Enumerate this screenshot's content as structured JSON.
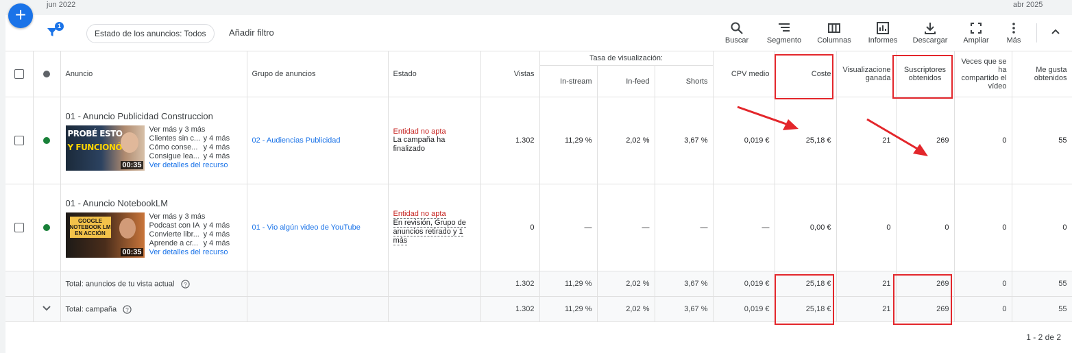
{
  "timeline": {
    "start": "jun 2022",
    "end": "abr 2025"
  },
  "toolbar": {
    "filter_badge": "1",
    "status_chip": "Estado de los anuncios: Todos",
    "add_filter": "Añadir filtro",
    "tools": [
      {
        "label": "Buscar",
        "icon": "search-icon"
      },
      {
        "label": "Segmento",
        "icon": "segment-icon"
      },
      {
        "label": "Columnas",
        "icon": "columns-icon"
      },
      {
        "label": "Informes",
        "icon": "reports-icon"
      },
      {
        "label": "Descargar",
        "icon": "download-icon"
      },
      {
        "label": "Ampliar",
        "icon": "expand-icon"
      },
      {
        "label": "Más",
        "icon": "more-vert-icon"
      }
    ]
  },
  "columns": {
    "ad": "Anuncio",
    "group": "Grupo de anuncios",
    "status": "Estado",
    "views": "Vistas",
    "view_rate": "Tasa de visualización:",
    "instream": "In-stream",
    "infeed": "In-feed",
    "shorts": "Shorts",
    "cpv": "CPV medio",
    "cost": "Coste",
    "earned_views": "Visualizacione ganada",
    "subscribers": "Suscriptores obtenidos",
    "shares": "Veces que se ha compartido el vídeo",
    "likes": "Me gusta obtenidos"
  },
  "rows": [
    {
      "title": "01 - Anuncio Publicidad Construccion",
      "thumb_text": [
        "PROBÉ ESTO",
        "Y FUNCIONÓ"
      ],
      "duration": "00:35",
      "lines": [
        {
          "t": "Ver más y 3 más",
          "a": ""
        },
        {
          "t": "Clientes sin c...",
          "a": "y 4 más"
        },
        {
          "t": "Cómo conse...",
          "a": "y 4 más"
        },
        {
          "t": "Consigue lea...",
          "a": "y 4 más"
        }
      ],
      "details": "Ver detalles del recurso",
      "group": "02 - Audiencias Publicidad",
      "status_title": "Entidad no apta",
      "status_desc": "La campaña ha finalizado",
      "views": "1.302",
      "instream": "11,29 %",
      "infeed": "2,02 %",
      "shorts": "3,67 %",
      "cpv": "0,019 €",
      "cost": "25,18 €",
      "earned": "21",
      "subs": "269",
      "shares": "0",
      "likes": "55"
    },
    {
      "title": "01 - Anuncio NotebookLM",
      "thumb_text": [
        "GOOGLE",
        "NOTEBOOK LM",
        "EN ACCIÓN"
      ],
      "duration": "00:35",
      "lines": [
        {
          "t": "Ver más y 3 más",
          "a": ""
        },
        {
          "t": "Podcast con IA",
          "a": "y 4 más"
        },
        {
          "t": "Convierte libr...",
          "a": "y 4 más"
        },
        {
          "t": "Aprende a cr...",
          "a": "y 4 más"
        }
      ],
      "details": "Ver detalles del recurso",
      "group": "01 - Vio algún video de YouTube",
      "status_title": "Entidad no apta",
      "status_desc": "En revisión, Grupo de anuncios retirado y 1 más",
      "views": "0",
      "instream": "—",
      "infeed": "—",
      "shorts": "—",
      "cpv": "—",
      "cost": "0,00 €",
      "earned": "0",
      "subs": "0",
      "shares": "0",
      "likes": "0"
    }
  ],
  "totals": [
    {
      "label": "Total: anuncios de tu vista actual",
      "views": "1.302",
      "instream": "11,29 %",
      "infeed": "2,02 %",
      "shorts": "3,67 %",
      "cpv": "0,019 €",
      "cost": "25,18 €",
      "earned": "21",
      "subs": "269",
      "shares": "0",
      "likes": "55"
    },
    {
      "label": "Total: campaña",
      "views": "1.302",
      "instream": "11,29 %",
      "infeed": "2,02 %",
      "shorts": "3,67 %",
      "cpv": "0,019 €",
      "cost": "25,18 €",
      "earned": "21",
      "subs": "269",
      "shares": "0",
      "likes": "55"
    }
  ],
  "pager": "1 - 2 de 2",
  "colors": {
    "accent": "#1a73e8",
    "enabled": "#188038",
    "error": "#c5221f",
    "annotation": "#e3262b"
  }
}
